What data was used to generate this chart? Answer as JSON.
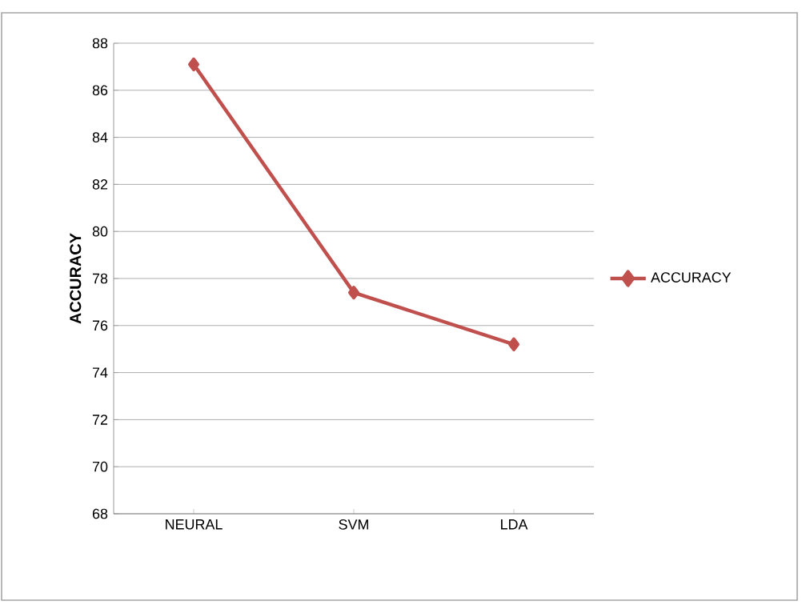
{
  "chart_data": {
    "type": "line",
    "ylabel": "ACCURACY",
    "categories": [
      "NEURAL",
      "SVM",
      "LDA"
    ],
    "series": [
      {
        "name": "ACCURACY",
        "color": "#c0504d",
        "values": [
          87.1,
          77.4,
          75.2
        ]
      }
    ],
    "ylim": [
      68,
      88
    ],
    "yticks": [
      68,
      70,
      72,
      74,
      76,
      78,
      80,
      82,
      84,
      86,
      88
    ],
    "grid": "y",
    "legend": "right",
    "marker": "diamond",
    "line_style": "solid"
  }
}
